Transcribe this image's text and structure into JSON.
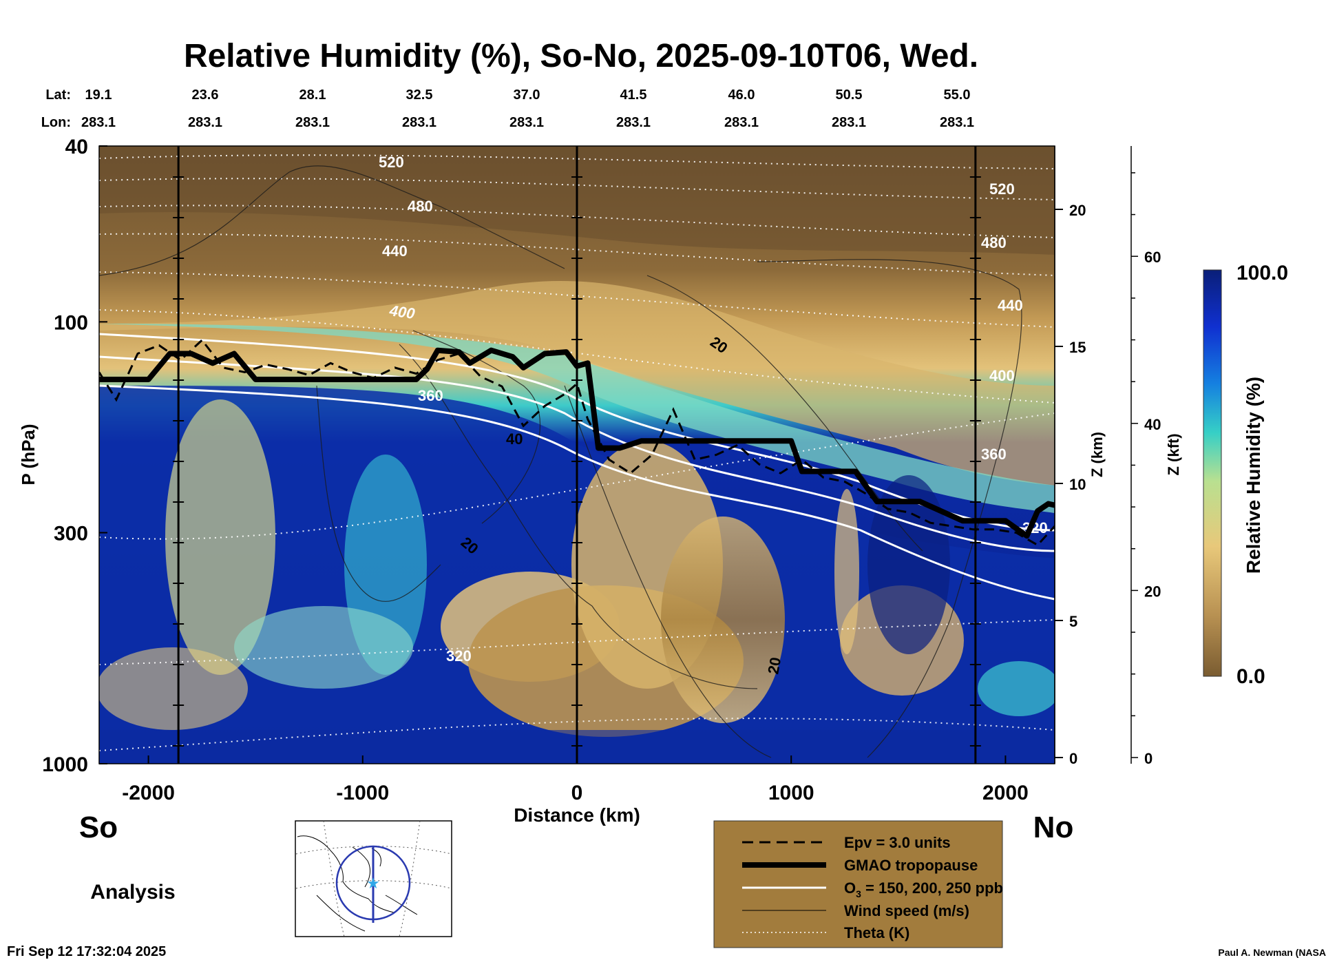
{
  "chart_data": {
    "type": "heatmap",
    "title": "Relative Humidity (%), So-No, 2025-09-10T06, Wed.",
    "xlabel": "Distance (km)",
    "ylabel": "P (hPa)",
    "z_km_label": "Z (km)",
    "z_kft_label": "Z (kft)",
    "colorbar_label": "Relative Humidity (%)",
    "colorbar_max": "100.0",
    "colorbar_min": "0.0",
    "xlim": [
      -2230,
      2230
    ],
    "ylim": [
      1000,
      40
    ],
    "x_ticks": [
      -2000,
      -1000,
      0,
      1000,
      2000
    ],
    "x_tick_labels": [
      "-2000",
      "-1000",
      "0",
      "1000",
      "2000"
    ],
    "p_ticks": [
      40,
      100,
      300,
      1000
    ],
    "p_tick_labels": [
      "40",
      "100",
      "300",
      "1000"
    ],
    "z_km_ticks": [
      0,
      5,
      10,
      15,
      20
    ],
    "z_km_tick_labels": [
      "0",
      "5",
      "10",
      "15",
      "20"
    ],
    "z_kft_ticks": [
      0,
      20,
      40,
      60
    ],
    "z_kft_tick_labels": [
      "0",
      "20",
      "40",
      "60"
    ],
    "lat_label": "Lat:",
    "lon_label": "Lon:",
    "lat_values": [
      "19.1",
      "23.6",
      "28.1",
      "32.5",
      "37.0",
      "41.5",
      "46.0",
      "50.5",
      "55.0"
    ],
    "lon_values": [
      "283.1",
      "283.1",
      "283.1",
      "283.1",
      "283.1",
      "283.1",
      "283.1",
      "283.1",
      "283.1"
    ],
    "marker_lines_km": [
      -1860,
      0,
      1860
    ],
    "tropopause": {
      "x": [
        -2230,
        -2000,
        -1900,
        -1800,
        -1700,
        -1600,
        -1500,
        -1000,
        -750,
        -700,
        -650,
        -550,
        -500,
        -400,
        -300,
        -250,
        -150,
        -50,
        0,
        50,
        100,
        200,
        300,
        600,
        1000,
        1050,
        1300,
        1400,
        1600,
        1800,
        2000,
        2100,
        2150,
        2200,
        2230
      ],
      "p": [
        135,
        135,
        118,
        118,
        124,
        118,
        135,
        135,
        135,
        128,
        116,
        117,
        124,
        116,
        120,
        127,
        118,
        117,
        126,
        124,
        193,
        193,
        186,
        186,
        186,
        218,
        218,
        255,
        255,
        282,
        282,
        305,
        268,
        258,
        260
      ]
    },
    "epv_dashed": {
      "x": [
        -2230,
        -2150,
        -2050,
        -1950,
        -1850,
        -1750,
        -1650,
        -1550,
        -1450,
        -1350,
        -1250,
        -1150,
        -1050,
        -950,
        -850,
        -750,
        -650,
        -550,
        -450,
        -350,
        -250,
        -150,
        -50,
        0,
        50,
        150,
        250,
        350,
        450,
        550,
        650,
        750,
        850,
        950,
        1050,
        1150,
        1250,
        1350,
        1450,
        1550,
        1650,
        1750,
        1850,
        1950,
        2050,
        2150,
        2230
      ],
      "p": [
        130,
        150,
        118,
        113,
        122,
        110,
        127,
        130,
        125,
        128,
        132,
        124,
        130,
        134,
        127,
        131,
        122,
        118,
        133,
        140,
        172,
        155,
        145,
        138,
        166,
        205,
        220,
        200,
        158,
        205,
        200,
        190,
        210,
        220,
        205,
        225,
        230,
        245,
        265,
        270,
        285,
        290,
        295,
        295,
        300,
        320,
        290
      ]
    },
    "ozone_ppb": [
      150,
      200,
      250
    ],
    "wind_speed_labels": [
      "20",
      "40",
      "20",
      "20"
    ],
    "theta_labels": [
      "520",
      "480",
      "440",
      "400",
      "360",
      "320",
      "520",
      "480",
      "440",
      "400",
      "360",
      "320"
    ],
    "legend": [
      {
        "label": "Epv = 3.0 units",
        "style": "dashed"
      },
      {
        "label": "GMAO tropopause",
        "style": "thick"
      },
      {
        "label_main": "O",
        "label_sub": "3",
        "label_rest": " = 150, 200, 250 ppb",
        "style": "white"
      },
      {
        "label": "Wind speed (m/s)",
        "style": "thin"
      },
      {
        "label": "Theta (K)",
        "style": "dotted"
      }
    ],
    "south_label": "So",
    "north_label": "No",
    "analysis_label": "Analysis",
    "timestamp": "Fri Sep 12 17:32:04 2025",
    "author": "Paul A. Newman (NASA",
    "colors": {
      "dry": "#7a5c31",
      "mid": "#d8b46a",
      "cyan": "#2ec8d0",
      "wet": "#0a2aa0",
      "legend_bg": "#a27c3d"
    }
  }
}
